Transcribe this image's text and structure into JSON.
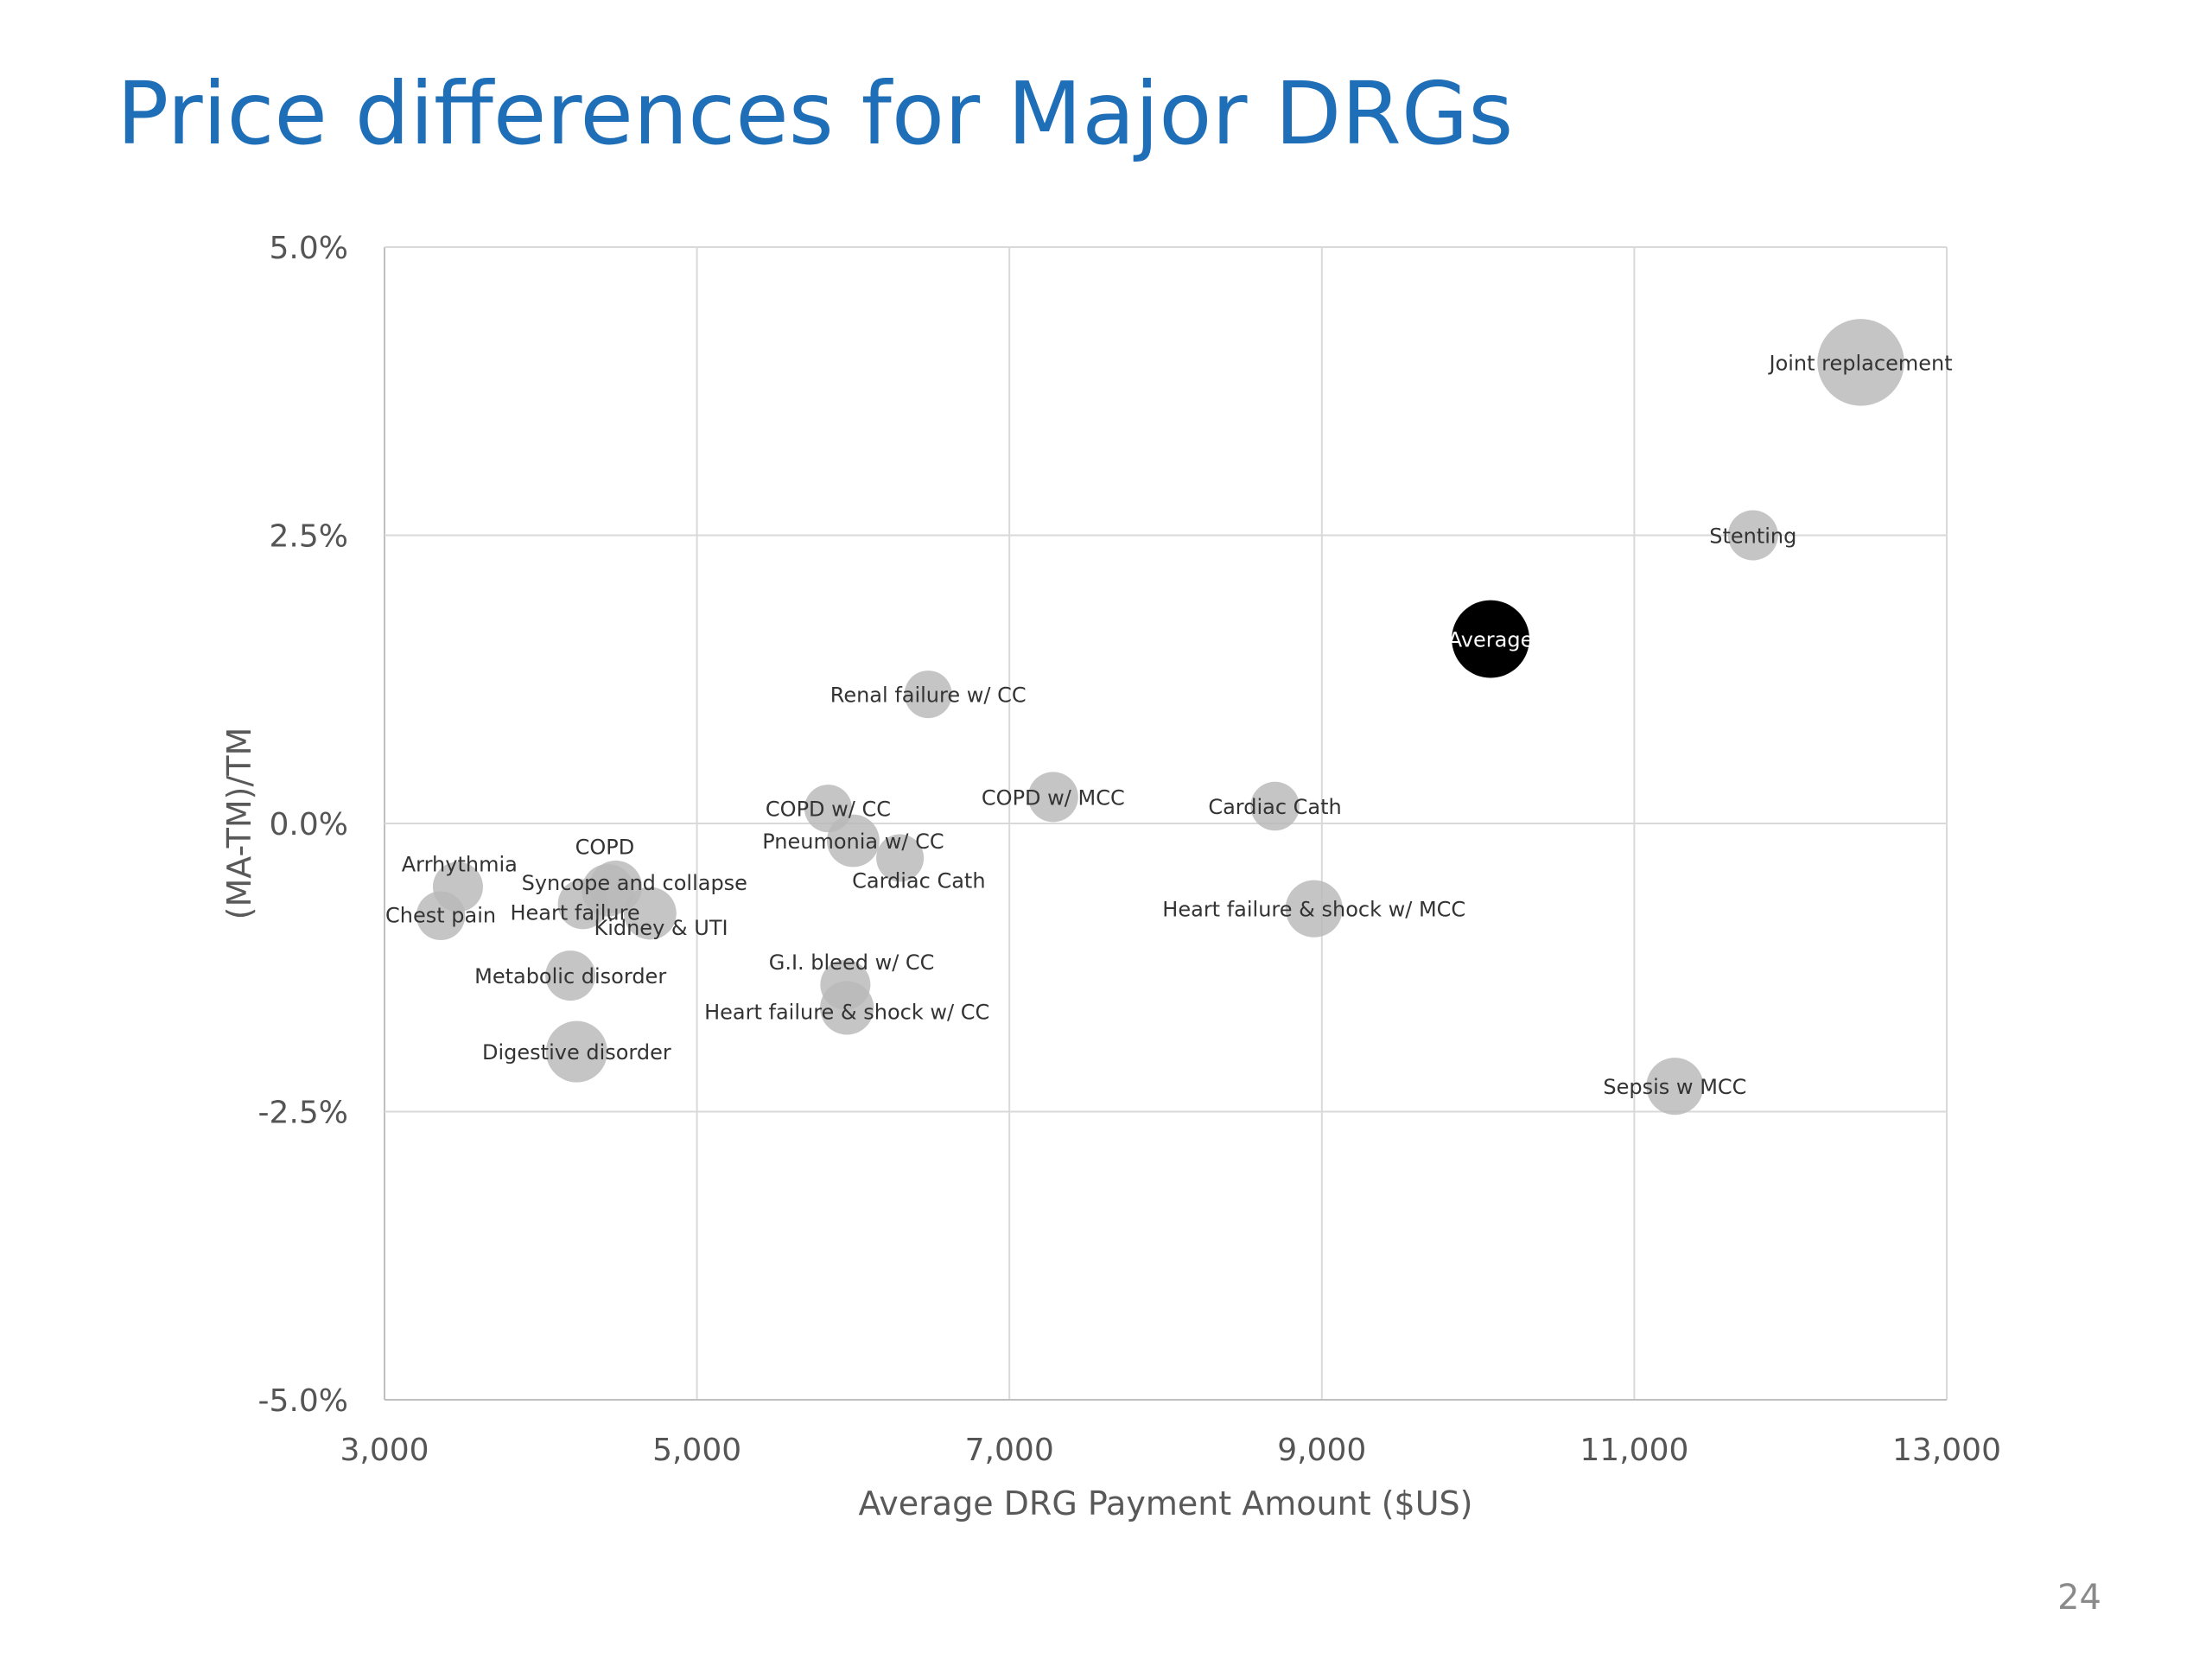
{
  "slide": {
    "title": "Price differences for Major DRGs",
    "page_number": "24"
  },
  "chart_data": {
    "type": "scatter",
    "variant": "bubble",
    "title": "",
    "xlabel": "Average DRG Payment  Amount ($US)",
    "ylabel": "(MA-TM)/TM",
    "xlim": [
      3000,
      13000
    ],
    "ylim": [
      -5.0,
      5.0
    ],
    "x_ticks": [
      3000,
      5000,
      7000,
      9000,
      11000,
      13000
    ],
    "x_tick_labels": [
      "3,000",
      "5,000",
      "7,000",
      "9,000",
      "11,000",
      "13,000"
    ],
    "y_ticks": [
      5.0,
      2.5,
      0.0,
      -2.5,
      -5.0
    ],
    "y_tick_labels": [
      "5.0%",
      "2.5%",
      "0.0%",
      "-2.5%",
      "-5.0%"
    ],
    "grid": true,
    "legend": "none",
    "colors": {
      "bubble": "#b8b8b8",
      "highlight": "#000000",
      "grid": "#d9d9d9",
      "axis": "#bfbfbf"
    },
    "points": [
      {
        "label": "Joint replacement",
        "x": 12450,
        "y": 4.0,
        "size": 3.0,
        "label_dx": 0,
        "label_dy": 0
      },
      {
        "label": "Stenting",
        "x": 11760,
        "y": 2.5,
        "size": 1.0,
        "label_dx": 0,
        "label_dy": 0
      },
      {
        "label": "Average",
        "x": 10080,
        "y": 1.6,
        "size": 2.4,
        "highlight": true,
        "label_dx": 0,
        "label_dy": 0
      },
      {
        "label": "Renal failure w/ CC",
        "x": 6480,
        "y": 1.12,
        "size": 0.9,
        "label_dx": 0,
        "label_dy": 0
      },
      {
        "label": "COPD w/ MCC",
        "x": 7280,
        "y": 0.23,
        "size": 1.0,
        "label_dx": 0,
        "label_dy": 0
      },
      {
        "label": "Cardiac Cath",
        "x": 8700,
        "y": 0.15,
        "size": 0.95,
        "label_dx": 0,
        "label_dy": 0
      },
      {
        "label": "COPD w/ CC",
        "x": 5840,
        "y": 0.13,
        "size": 0.9,
        "label_dx": 0,
        "label_dy": 0
      },
      {
        "label": "Pneumonia w/ CC",
        "x": 6000,
        "y": -0.15,
        "size": 1.1,
        "label_dx": 0,
        "label_dy": 0
      },
      {
        "label": "Cardiac Cath",
        "x": 6300,
        "y": -0.3,
        "size": 0.9,
        "label_dx": 0.12,
        "label_dy": -0.19
      },
      {
        "label": "Heart failure & shock w/ MCC",
        "x": 8950,
        "y": -0.74,
        "size": 1.3,
        "label_dx": 0,
        "label_dy": 0
      },
      {
        "label": "Arrhythmia",
        "x": 3470,
        "y": -0.55,
        "size": 1.0,
        "label_dx": 0.01,
        "label_dy": 0.2
      },
      {
        "label": "COPD",
        "x": 4430,
        "y": -0.58,
        "size": 1.1,
        "label_dx": -0.02,
        "label_dy": 0.38
      },
      {
        "label": "Syncope and collapse",
        "x": 4480,
        "y": -0.55,
        "size": 1.1,
        "label_dx": 0.12,
        "label_dy": 0.04
      },
      {
        "label": "Heart failure",
        "x": 4270,
        "y": -0.7,
        "size": 1.0,
        "label_dx": -0.05,
        "label_dy": -0.07
      },
      {
        "label": "Kidney & UTI",
        "x": 4700,
        "y": -0.78,
        "size": 1.1,
        "label_dx": 0.07,
        "label_dy": -0.12
      },
      {
        "label": "Chest pain",
        "x": 3360,
        "y": -0.8,
        "size": 0.95,
        "label_dx": 0,
        "label_dy": 0.01
      },
      {
        "label": "Metabolic disorder",
        "x": 4190,
        "y": -1.32,
        "size": 1.0,
        "label_dx": 0,
        "label_dy": 0
      },
      {
        "label": "G.I. bleed w/ CC",
        "x": 5950,
        "y": -1.4,
        "size": 1.0,
        "label_dx": 0.04,
        "label_dy": 0.2
      },
      {
        "label": "Heart failure & shock w/ CC",
        "x": 5960,
        "y": -1.6,
        "size": 1.15,
        "label_dx": 0,
        "label_dy": -0.03
      },
      {
        "label": "Digestive disorder",
        "x": 4230,
        "y": -1.98,
        "size": 1.5,
        "label_dx": 0,
        "label_dy": 0
      },
      {
        "label": "Sepsis  w MCC",
        "x": 11260,
        "y": -2.28,
        "size": 1.3,
        "label_dx": 0,
        "label_dy": 0
      }
    ]
  }
}
